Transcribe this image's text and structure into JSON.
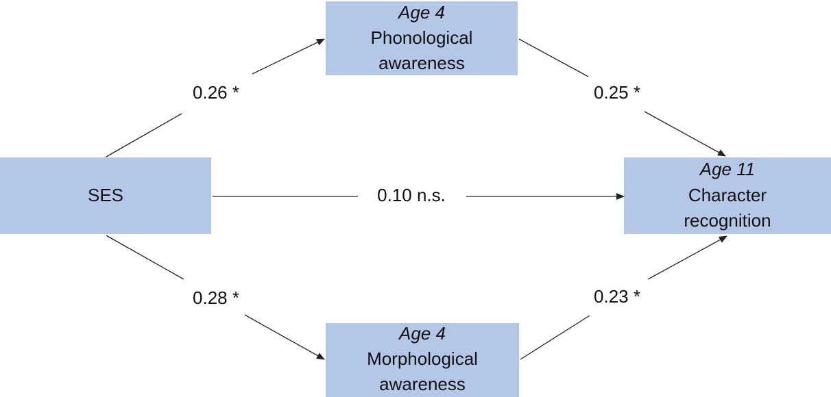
{
  "nodes": [
    {
      "lines": [
        "SES"
      ]
    },
    {
      "title": "Age 4",
      "lines": [
        "Phonological",
        "awareness"
      ]
    },
    {
      "title": "Age 4",
      "lines": [
        "Morphological",
        "awareness"
      ]
    },
    {
      "title": "Age 11",
      "lines": [
        "Character",
        "recognition"
      ]
    }
  ],
  "edges": [
    {
      "label": "0.26 *"
    },
    {
      "label": "0.25 *"
    },
    {
      "label": "0.10 n.s."
    },
    {
      "label": "0.28 *"
    },
    {
      "label": "0.23 *"
    }
  ]
}
